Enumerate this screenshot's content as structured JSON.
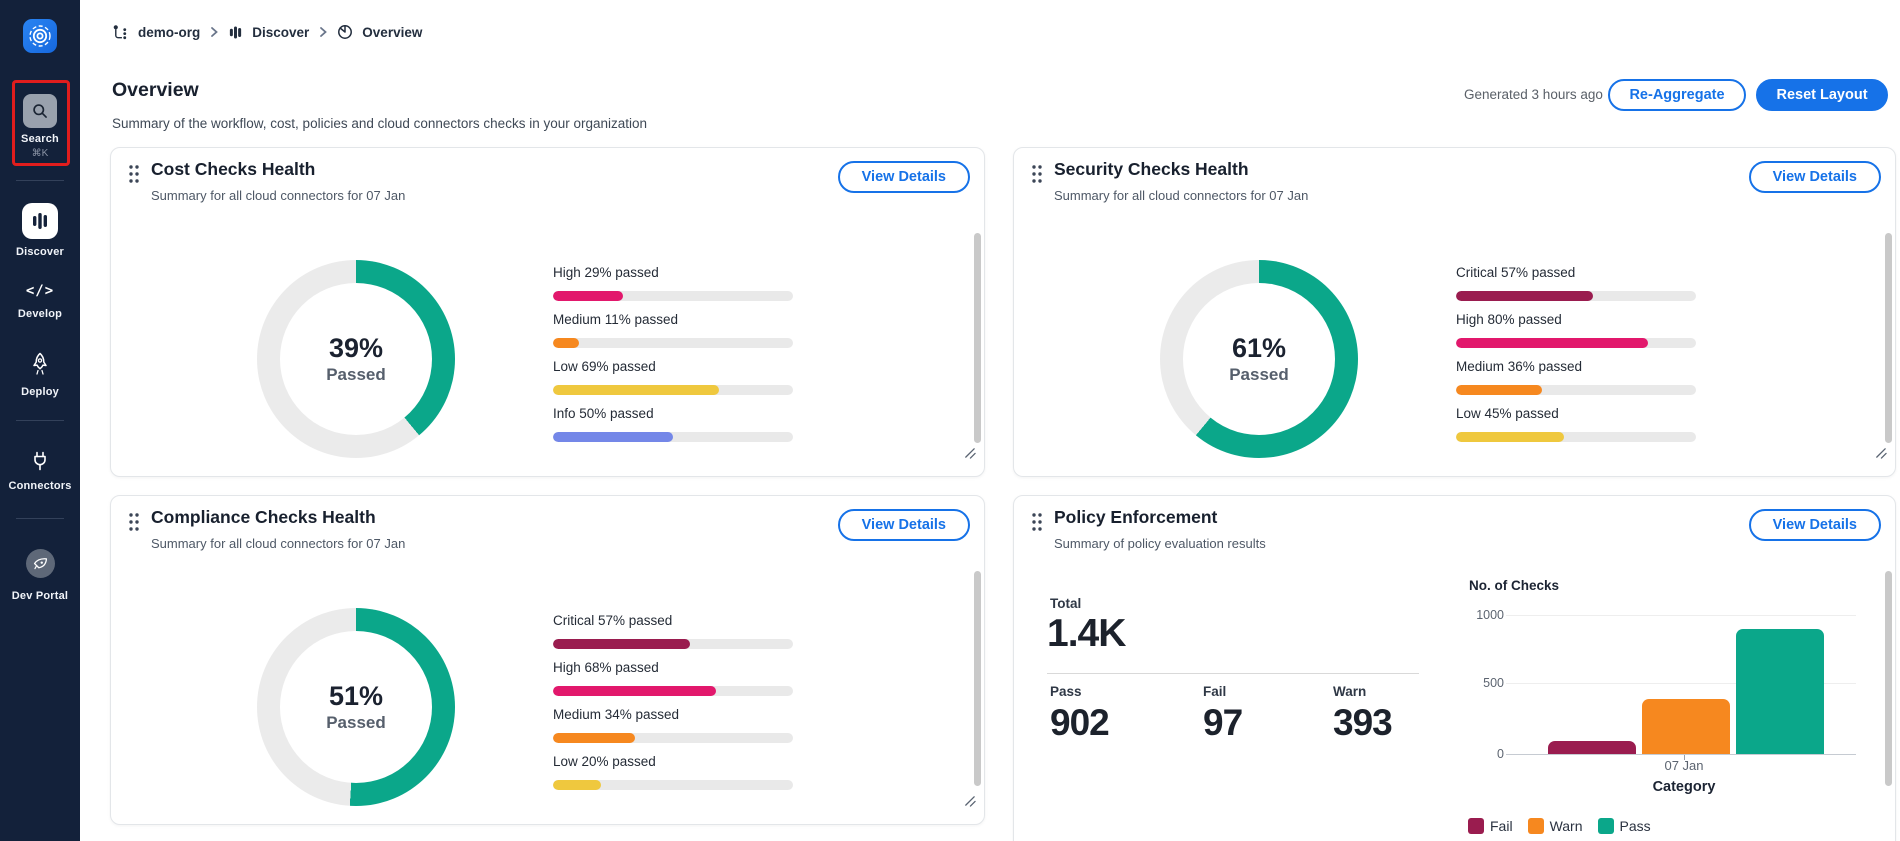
{
  "colors": {
    "accent_blue": "#1672E8",
    "teal": "#0BA78A",
    "maroon": "#9A1C4F",
    "pink": "#E2186C",
    "orange": "#F6881F",
    "yellow": "#EFC83E",
    "periwinkle": "#7487E8",
    "track_gray": "#E9E9E9",
    "donut_track": "#EBEBEB",
    "sidebar_bg": "#13213A",
    "highlight_red": "#E11D1D"
  },
  "sidebar": {
    "search": {
      "label": "Search",
      "shortcut": "⌘K"
    },
    "items": [
      {
        "label": "Discover",
        "active": true
      },
      {
        "label": "Develop",
        "active": false
      },
      {
        "label": "Deploy",
        "active": false
      },
      {
        "label": "Connectors",
        "active": false
      },
      {
        "label": "Dev Portal",
        "active": false
      }
    ]
  },
  "breadcrumb": {
    "items": [
      "demo-org",
      "Discover",
      "Overview"
    ]
  },
  "page_header": {
    "title": "Overview",
    "subtitle": "Summary of the workflow, cost, policies and cloud connectors checks in your organization",
    "generated": "Generated 3 hours ago",
    "reaggregate_label": "Re-Aggregate",
    "reset_label": "Reset Layout"
  },
  "cards": {
    "cost": {
      "title": "Cost Checks Health",
      "subtitle": "Summary for all cloud connectors for 07 Jan",
      "view_details_label": "View Details",
      "donut": {
        "percent": 39,
        "percent_text": "39%",
        "label": "Passed"
      },
      "bars": [
        {
          "label": "High 29% passed",
          "percent": 29,
          "color": "#E2186C"
        },
        {
          "label": "Medium 11% passed",
          "percent": 11,
          "color": "#F6881F"
        },
        {
          "label": "Low 69% passed",
          "percent": 69,
          "color": "#EFC83E"
        },
        {
          "label": "Info 50% passed",
          "percent": 50,
          "color": "#7487E8"
        }
      ]
    },
    "security": {
      "title": "Security Checks Health",
      "subtitle": "Summary for all cloud connectors for 07 Jan",
      "view_details_label": "View Details",
      "donut": {
        "percent": 61,
        "percent_text": "61%",
        "label": "Passed"
      },
      "bars": [
        {
          "label": "Critical 57% passed",
          "percent": 57,
          "color": "#9A1C4F"
        },
        {
          "label": "High 80% passed",
          "percent": 80,
          "color": "#E2186C"
        },
        {
          "label": "Medium 36% passed",
          "percent": 36,
          "color": "#F6881F"
        },
        {
          "label": "Low 45% passed",
          "percent": 45,
          "color": "#EFC83E"
        }
      ]
    },
    "compliance": {
      "title": "Compliance Checks Health",
      "subtitle": "Summary for all cloud connectors for 07 Jan",
      "view_details_label": "View Details",
      "donut": {
        "percent": 51,
        "percent_text": "51%",
        "label": "Passed"
      },
      "bars": [
        {
          "label": "Critical 57% passed",
          "percent": 57,
          "color": "#9A1C4F"
        },
        {
          "label": "High 68% passed",
          "percent": 68,
          "color": "#E2186C"
        },
        {
          "label": "Medium 34% passed",
          "percent": 34,
          "color": "#F6881F"
        },
        {
          "label": "Low 20% passed",
          "percent": 20,
          "color": "#EFC83E"
        }
      ]
    },
    "policy": {
      "title": "Policy Enforcement",
      "subtitle": "Summary of policy evaluation results",
      "view_details_label": "View Details",
      "total_label": "Total",
      "total_value": "1.4K",
      "stats": [
        {
          "label": "Pass",
          "value": "902"
        },
        {
          "label": "Fail",
          "value": "97"
        },
        {
          "label": "Warn",
          "value": "393"
        }
      ]
    }
  },
  "chart_data": {
    "type": "bar",
    "title": "No. of Checks",
    "xlabel": "Category",
    "ylabel": "No. of Checks",
    "categories": [
      "Fail",
      "Warn",
      "Pass"
    ],
    "values": [
      97,
      393,
      902
    ],
    "colors": [
      "#9A1C4F",
      "#F6881F",
      "#0BA78A"
    ],
    "x_tick_label": "07 Jan",
    "yticks": [
      0,
      500,
      1000
    ],
    "ylim": [
      0,
      1000
    ],
    "grid": true,
    "legend": [
      "Fail",
      "Warn",
      "Pass"
    ],
    "legend_position": "bottom"
  }
}
